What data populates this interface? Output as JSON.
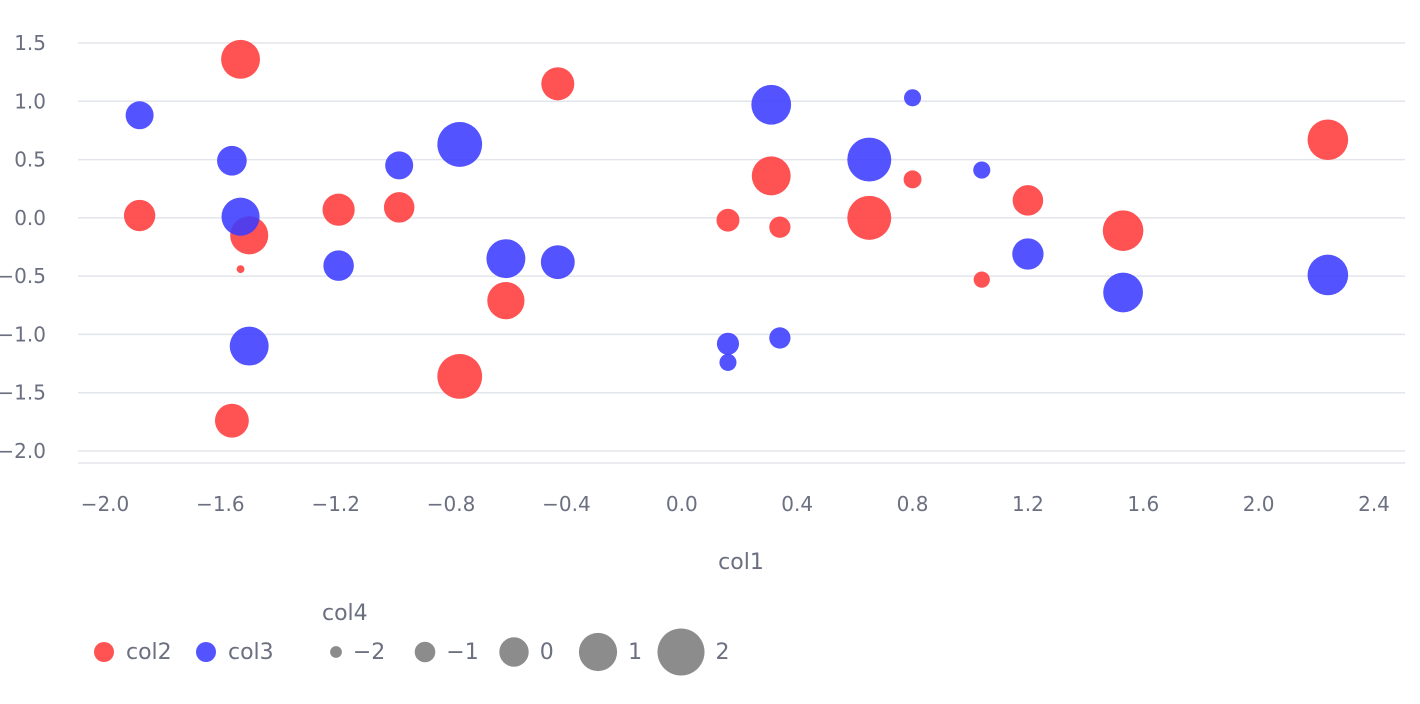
{
  "chart_data": {
    "type": "scatter",
    "xlabel": "col1",
    "ylabel": "",
    "xlim": [
      -2.0,
      2.45
    ],
    "ylim": [
      -2.0,
      1.55
    ],
    "x_ticks": [
      "−2.0",
      "−1.6",
      "−1.2",
      "−0.8",
      "−0.4",
      "0.0",
      "0.4",
      "0.8",
      "1.2",
      "1.6",
      "2.0",
      "2.4"
    ],
    "x_tick_values": [
      -2.0,
      -1.6,
      -1.2,
      -0.8,
      -0.4,
      0.0,
      0.4,
      0.8,
      1.2,
      1.6,
      2.0,
      2.4
    ],
    "y_ticks": [
      "1.5",
      "1.0",
      "0.5",
      "0.0",
      "−0.5",
      "−1.0",
      "−1.5",
      "−2.0"
    ],
    "y_tick_values": [
      1.5,
      1.0,
      0.5,
      0.0,
      -0.5,
      -1.0,
      -1.5,
      -2.0
    ],
    "grid": "horizontal",
    "legend_position": "bottom-left",
    "series": [
      {
        "name": "col2",
        "color": "#ff3b3b",
        "points": [
          {
            "x": -1.53,
            "y": 1.36,
            "size": 1.3
          },
          {
            "x": -0.43,
            "y": 1.15,
            "size": 0.6
          },
          {
            "x": -1.88,
            "y": 0.02,
            "size": 0.4
          },
          {
            "x": -1.19,
            "y": 0.07,
            "size": 0.5
          },
          {
            "x": -0.98,
            "y": 0.09,
            "size": 0.3
          },
          {
            "x": -1.5,
            "y": -0.15,
            "size": 1.2
          },
          {
            "x": -1.53,
            "y": -0.44,
            "size": -2.4
          },
          {
            "x": -0.61,
            "y": -0.71,
            "size": 1.1
          },
          {
            "x": -0.77,
            "y": -1.36,
            "size": 2.0
          },
          {
            "x": -1.56,
            "y": -1.74,
            "size": 0.7
          },
          {
            "x": 0.16,
            "y": -0.02,
            "size": -0.6
          },
          {
            "x": 0.31,
            "y": 0.36,
            "size": 1.3
          },
          {
            "x": 0.34,
            "y": -0.08,
            "size": -0.8
          },
          {
            "x": 0.65,
            "y": 0.0,
            "size": 1.9
          },
          {
            "x": 0.8,
            "y": 0.33,
            "size": -1.2
          },
          {
            "x": 1.04,
            "y": -0.53,
            "size": -1.4
          },
          {
            "x": 1.2,
            "y": 0.15,
            "size": 0.3
          },
          {
            "x": 1.53,
            "y": -0.11,
            "size": 1.5
          },
          {
            "x": 2.24,
            "y": 0.67,
            "size": 1.5
          }
        ]
      },
      {
        "name": "col3",
        "color": "#3b3bff",
        "points": [
          {
            "x": -1.88,
            "y": 0.88,
            "size": 0.0
          },
          {
            "x": -1.56,
            "y": 0.49,
            "size": 0.2
          },
          {
            "x": -1.53,
            "y": 0.01,
            "size": 1.2
          },
          {
            "x": -1.5,
            "y": -1.1,
            "size": 1.3
          },
          {
            "x": -1.19,
            "y": -0.41,
            "size": 0.3
          },
          {
            "x": -0.98,
            "y": 0.45,
            "size": 0.0
          },
          {
            "x": -0.77,
            "y": 0.63,
            "size": 2.0
          },
          {
            "x": -0.61,
            "y": -0.35,
            "size": 1.3
          },
          {
            "x": -0.43,
            "y": -0.38,
            "size": 0.7
          },
          {
            "x": 0.16,
            "y": -1.08,
            "size": -0.7
          },
          {
            "x": 0.16,
            "y": -1.24,
            "size": -1.3
          },
          {
            "x": 0.31,
            "y": 0.97,
            "size": 1.4
          },
          {
            "x": 0.34,
            "y": -1.03,
            "size": -0.8
          },
          {
            "x": 0.65,
            "y": 0.5,
            "size": 1.9
          },
          {
            "x": 0.8,
            "y": 1.03,
            "size": -1.3
          },
          {
            "x": 1.04,
            "y": 0.41,
            "size": -1.3
          },
          {
            "x": 1.2,
            "y": -0.31,
            "size": 0.4
          },
          {
            "x": 1.53,
            "y": -0.64,
            "size": 1.4
          },
          {
            "x": 2.24,
            "y": -0.49,
            "size": 1.5
          }
        ]
      }
    ],
    "legend": {
      "color_items": [
        {
          "label": "col2",
          "color": "#ff3b3b"
        },
        {
          "label": "col3",
          "color": "#3b3bff"
        }
      ],
      "size_title": "col4",
      "size_color": "#808080",
      "size_items": [
        {
          "label": "−2",
          "value": -2
        },
        {
          "label": "−1",
          "value": -1
        },
        {
          "label": "0",
          "value": 0
        },
        {
          "label": "1",
          "value": 1
        },
        {
          "label": "2",
          "value": 2
        }
      ]
    }
  }
}
